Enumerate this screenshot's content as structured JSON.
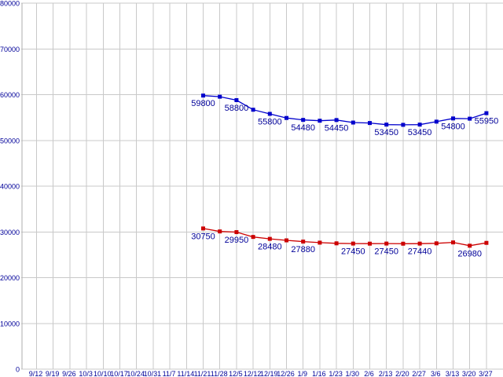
{
  "chart_data": {
    "type": "line",
    "title": "",
    "xlabel": "",
    "ylabel": "",
    "ylim": [
      0,
      80000
    ],
    "y_tick_step": 10000,
    "grid": "both",
    "legend": "none",
    "y_tick_labels": [
      "0",
      "10000",
      "20000",
      "30000",
      "40000",
      "50000",
      "60000",
      "70000",
      "80000"
    ],
    "x_tick_labels": [
      "9/12",
      "9/19",
      "9/26",
      "10/3",
      "10/10",
      "10/17",
      "10/24",
      "10/31",
      "11/7",
      "11/14",
      "11/21",
      "11/28",
      "12/5",
      "12/12",
      "12/19",
      "12/26",
      "1/9",
      "1/16",
      "1/23",
      "1/30",
      "2/6",
      "2/13",
      "2/20",
      "2/27",
      "3/6",
      "3/13",
      "3/20",
      "3/27"
    ],
    "series": [
      {
        "name": "upper-blue-series",
        "color": "#0000cc",
        "marker": "square",
        "start_index": 10,
        "start_label": "11/21",
        "values": [
          59800,
          59550,
          58800,
          56700,
          55800,
          54900,
          54480,
          54300,
          54450,
          53900,
          53800,
          53450,
          53400,
          53450,
          54100,
          54800,
          54750,
          55950
        ],
        "point_labels": [
          {
            "i": 0,
            "text": "59800"
          },
          {
            "i": 2,
            "text": "58800"
          },
          {
            "i": 4,
            "text": "55800"
          },
          {
            "i": 6,
            "text": "54480"
          },
          {
            "i": 8,
            "text": "54450"
          },
          {
            "i": 11,
            "text": "53450"
          },
          {
            "i": 13,
            "text": "53450"
          },
          {
            "i": 15,
            "text": "54800"
          },
          {
            "i": 17,
            "text": "55950"
          }
        ]
      },
      {
        "name": "lower-red-series",
        "color": "#cc0000",
        "marker": "square",
        "start_index": 10,
        "start_label": "11/21",
        "values": [
          30750,
          30100,
          29950,
          28900,
          28480,
          28150,
          27880,
          27650,
          27500,
          27450,
          27430,
          27450,
          27420,
          27440,
          27500,
          27700,
          26980,
          27600
        ],
        "point_labels": [
          {
            "i": 0,
            "text": "30750"
          },
          {
            "i": 2,
            "text": "29950"
          },
          {
            "i": 4,
            "text": "28480"
          },
          {
            "i": 6,
            "text": "27880"
          },
          {
            "i": 9,
            "text": "27450"
          },
          {
            "i": 11,
            "text": "27450"
          },
          {
            "i": 13,
            "text": "27440"
          },
          {
            "i": 16,
            "text": "26980"
          }
        ]
      }
    ],
    "colors": {
      "background": "#ffffff",
      "grid": "#c9c9c9",
      "axis": "#aeaeae",
      "tick_text": "#000099",
      "data_label_text": "#000099"
    }
  }
}
